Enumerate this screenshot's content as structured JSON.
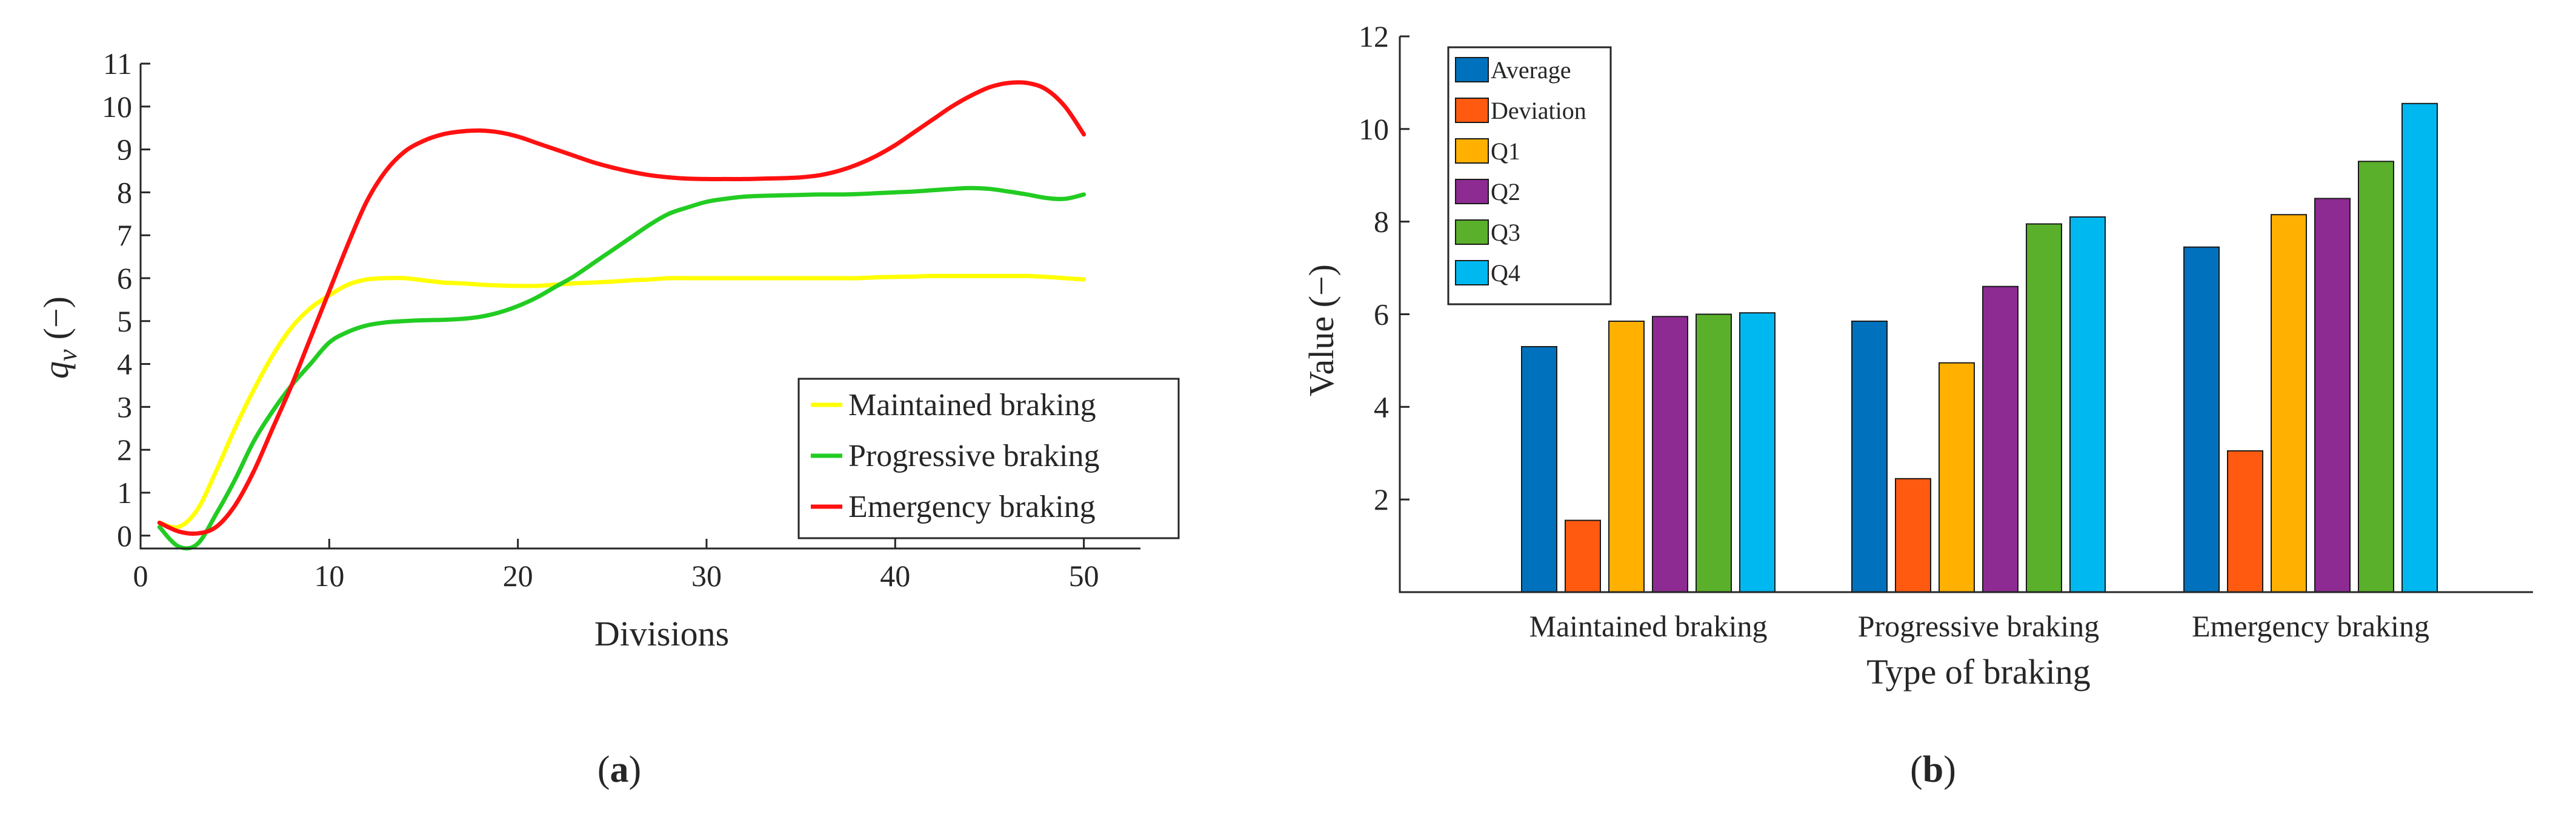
{
  "chart_data": [
    {
      "type": "line",
      "panel_label": "a",
      "xlabel": "Divisions",
      "ylabel": "q",
      "ylabel_sub": "v",
      "ylabel_unit": "(−)",
      "xlim": [
        0,
        53
      ],
      "ylim": [
        -0.3,
        11
      ],
      "xticks": [
        0,
        10,
        20,
        30,
        40,
        50
      ],
      "yticks": [
        0,
        1,
        2,
        3,
        4,
        5,
        6,
        7,
        8,
        9,
        10,
        11
      ],
      "legend_position": "bottom-right",
      "series": [
        {
          "name": "Maintained braking",
          "color": "#ffff00",
          "x": [
            1,
            2,
            3,
            4,
            5,
            6,
            7,
            8,
            9,
            10,
            11,
            12,
            13,
            14,
            15,
            16,
            17,
            18,
            19,
            20,
            21,
            22,
            23,
            24,
            25,
            26,
            27,
            28,
            29,
            30,
            31,
            32,
            33,
            34,
            35,
            36,
            37,
            38,
            39,
            40,
            41,
            42,
            43,
            44,
            45,
            46,
            47,
            48,
            49,
            50
          ],
          "values": [
            0.3,
            0.2,
            0.6,
            1.5,
            2.5,
            3.4,
            4.2,
            4.85,
            5.3,
            5.6,
            5.85,
            5.97,
            6.0,
            6.0,
            5.95,
            5.9,
            5.88,
            5.85,
            5.83,
            5.82,
            5.82,
            5.85,
            5.88,
            5.9,
            5.92,
            5.95,
            5.97,
            6.0,
            6.0,
            6.0,
            6.0,
            6.0,
            6.0,
            6.0,
            6.0,
            6.0,
            6.0,
            6.0,
            6.02,
            6.03,
            6.04,
            6.05,
            6.05,
            6.05,
            6.05,
            6.05,
            6.05,
            6.03,
            6.0,
            5.97
          ]
        },
        {
          "name": "Progressive braking",
          "color": "#22cc22",
          "x": [
            1,
            2,
            3,
            4,
            5,
            6,
            7,
            8,
            9,
            10,
            11,
            12,
            13,
            14,
            15,
            16,
            17,
            18,
            19,
            20,
            21,
            22,
            23,
            24,
            25,
            26,
            27,
            28,
            29,
            30,
            31,
            32,
            33,
            34,
            35,
            36,
            37,
            38,
            39,
            40,
            41,
            42,
            43,
            44,
            45,
            46,
            47,
            48,
            49,
            50
          ],
          "values": [
            0.2,
            -0.25,
            -0.2,
            0.5,
            1.3,
            2.2,
            2.9,
            3.5,
            4.0,
            4.5,
            4.75,
            4.9,
            4.97,
            5.0,
            5.02,
            5.03,
            5.05,
            5.1,
            5.2,
            5.35,
            5.55,
            5.8,
            6.05,
            6.35,
            6.65,
            6.95,
            7.25,
            7.5,
            7.65,
            7.78,
            7.85,
            7.9,
            7.92,
            7.93,
            7.94,
            7.95,
            7.95,
            7.96,
            7.98,
            8.0,
            8.02,
            8.05,
            8.08,
            8.1,
            8.08,
            8.02,
            7.95,
            7.87,
            7.85,
            7.95
          ]
        },
        {
          "name": "Emergency braking",
          "color": "#ff1111",
          "x": [
            1,
            2,
            3,
            4,
            5,
            6,
            7,
            8,
            9,
            10,
            11,
            12,
            13,
            14,
            15,
            16,
            17,
            18,
            19,
            20,
            21,
            22,
            23,
            24,
            25,
            26,
            27,
            28,
            29,
            30,
            31,
            32,
            33,
            34,
            35,
            36,
            37,
            38,
            39,
            40,
            41,
            42,
            43,
            44,
            45,
            46,
            47,
            48,
            49,
            50
          ],
          "values": [
            0.3,
            0.1,
            0.05,
            0.2,
            0.7,
            1.5,
            2.5,
            3.5,
            4.6,
            5.7,
            6.8,
            7.8,
            8.5,
            8.95,
            9.2,
            9.35,
            9.42,
            9.44,
            9.4,
            9.3,
            9.15,
            9.0,
            8.85,
            8.7,
            8.58,
            8.48,
            8.4,
            8.35,
            8.32,
            8.31,
            8.31,
            8.31,
            8.32,
            8.33,
            8.35,
            8.4,
            8.5,
            8.65,
            8.85,
            9.1,
            9.4,
            9.7,
            10.0,
            10.25,
            10.45,
            10.55,
            10.55,
            10.4,
            10.0,
            9.35
          ]
        }
      ]
    },
    {
      "type": "bar",
      "panel_label": "b",
      "xlabel": "Type of braking",
      "ylabel": "Value (−)",
      "ylim": [
        0,
        12
      ],
      "yticks": [
        2,
        4,
        6,
        8,
        10,
        12
      ],
      "legend_position": "top-left",
      "categories": [
        "Maintained braking",
        "Progressive braking",
        "Emergency braking"
      ],
      "series": [
        {
          "name": "Average",
          "color": "#0072bd",
          "values": [
            5.3,
            5.85,
            7.45
          ]
        },
        {
          "name": "Deviation",
          "color": "#ff5a0f",
          "values": [
            1.55,
            2.45,
            3.05
          ]
        },
        {
          "name": "Q1",
          "color": "#ffb000",
          "values": [
            5.85,
            4.95,
            8.15
          ]
        },
        {
          "name": "Q2",
          "color": "#8e2b93",
          "values": [
            5.95,
            6.6,
            8.5
          ]
        },
        {
          "name": "Q3",
          "color": "#5ab02a",
          "values": [
            6.0,
            7.95,
            9.3
          ]
        },
        {
          "name": "Q4",
          "color": "#00b8f0",
          "values": [
            6.03,
            8.1,
            10.55
          ]
        }
      ]
    }
  ]
}
